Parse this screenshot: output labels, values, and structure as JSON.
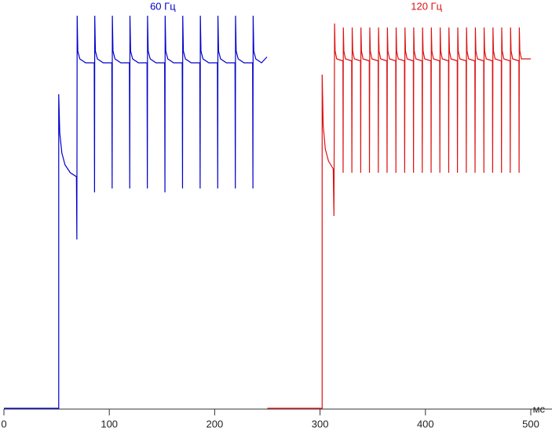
{
  "chart_data": {
    "type": "line",
    "x_label": "мс",
    "xlim": [
      0,
      500
    ],
    "xticks": [
      0,
      100,
      200,
      300,
      400,
      500
    ],
    "ylim": [
      0,
      100
    ],
    "series": [
      {
        "name": "60 Гц",
        "color": "#0000cc",
        "x": [
          0,
          52,
          52,
          53,
          55,
          58,
          63,
          68.8,
          69.2,
          69.5,
          70.1,
          72,
          77.5,
          85.7,
          86,
          86.2,
          86.8,
          88.7,
          94.2,
          102.4,
          102.7,
          102.9,
          103.5,
          105.4,
          110.9,
          119.1,
          119.4,
          119.6,
          120.2,
          122.1,
          127.6,
          135.8,
          136.1,
          136.3,
          136.9,
          138.8,
          144.3,
          152.5,
          152.8,
          153,
          153.6,
          155.5,
          161,
          169.2,
          169.5,
          169.7,
          170.3,
          172.2,
          177.7,
          185.9,
          186.2,
          186.4,
          187,
          188.9,
          194.4,
          202.6,
          202.9,
          203.1,
          203.7,
          205.6,
          211.1,
          219.3,
          219.6,
          219.8,
          220.4,
          222.3,
          227.8,
          236,
          236.3,
          236.5,
          237.1,
          239,
          244.5,
          249.6
        ],
        "values": [
          0,
          0,
          80,
          70,
          65,
          62,
          60,
          59,
          43,
          100,
          91,
          89,
          88,
          88,
          55,
          100,
          91,
          89,
          88,
          88,
          56,
          100,
          91,
          89,
          88,
          88,
          56,
          100,
          91,
          89,
          88,
          88,
          56,
          100,
          91,
          89,
          88,
          88,
          55,
          100,
          91,
          89,
          88,
          88,
          56,
          100,
          91,
          89,
          88,
          88,
          56,
          100,
          91,
          89,
          88,
          88,
          56,
          100,
          91,
          89,
          88,
          88,
          56,
          100,
          91,
          89,
          88,
          88,
          56,
          100,
          91,
          89,
          88,
          89.5
        ]
      },
      {
        "name": "120 Гц",
        "color": "#dd1111",
        "x": [
          250,
          302,
          302,
          303,
          305,
          308,
          312.5,
          313.2,
          313.8,
          314.3,
          315.8,
          321.7,
          321.9,
          322.1,
          322.6,
          324.1,
          330,
          330.2,
          330.5,
          331,
          332.5,
          338.4,
          338.6,
          338.8,
          339.3,
          340.8,
          346.7,
          346.9,
          347.2,
          347.7,
          349.2,
          355.1,
          355.3,
          355.5,
          356,
          357.5,
          363.4,
          363.6,
          363.9,
          364.4,
          365.9,
          371.8,
          372,
          372.2,
          372.7,
          374.2,
          380.1,
          380.3,
          380.6,
          381.1,
          382.6,
          388.5,
          388.7,
          388.9,
          389.4,
          390.9,
          396.8,
          397,
          397.3,
          397.8,
          399.3,
          405.2,
          405.4,
          405.6,
          406.1,
          407.6,
          413.5,
          413.7,
          414,
          414.5,
          416,
          421.9,
          422.1,
          422.3,
          422.8,
          424.3,
          430.2,
          430.4,
          430.7,
          431.2,
          432.7,
          438.6,
          438.8,
          439,
          439.5,
          441,
          446.9,
          447.1,
          447.4,
          447.9,
          449.4,
          455.3,
          455.5,
          455.7,
          456.2,
          457.7,
          463.6,
          463.8,
          464.1,
          464.6,
          466.1,
          472,
          472.2,
          472.4,
          472.9,
          474.4,
          480.3,
          480.5,
          480.8,
          481.3,
          482.8,
          488.7,
          488.9,
          489.1,
          489.6,
          491.1,
          500
        ],
        "values": [
          0,
          0,
          85,
          72,
          66,
          63,
          61,
          49,
          98,
          91,
          89,
          88.5,
          60,
          97,
          91,
          89,
          88.5,
          60,
          97,
          91,
          89,
          88.5,
          60,
          97,
          91,
          89,
          88.5,
          60,
          97,
          91,
          89,
          88.5,
          60,
          97,
          91,
          89,
          88.5,
          60,
          97,
          91,
          89,
          88.5,
          60,
          97,
          91,
          89,
          88.5,
          60,
          97,
          91,
          89,
          88.5,
          60,
          97,
          91,
          89,
          88.5,
          60,
          97,
          91,
          89,
          88.5,
          60,
          97,
          91,
          89,
          88.5,
          60,
          97,
          91,
          89,
          88.5,
          60,
          97,
          91,
          89,
          88.5,
          60,
          97,
          91,
          89,
          88.5,
          60,
          97,
          91,
          89,
          88.5,
          60,
          97,
          91,
          89,
          88.5,
          60,
          97,
          91,
          89,
          88.5,
          60,
          97,
          91,
          89,
          88.5,
          60,
          97,
          91,
          89,
          88.5,
          60,
          97,
          91,
          89,
          88.5,
          60,
          97,
          91,
          89,
          89
        ]
      }
    ]
  }
}
